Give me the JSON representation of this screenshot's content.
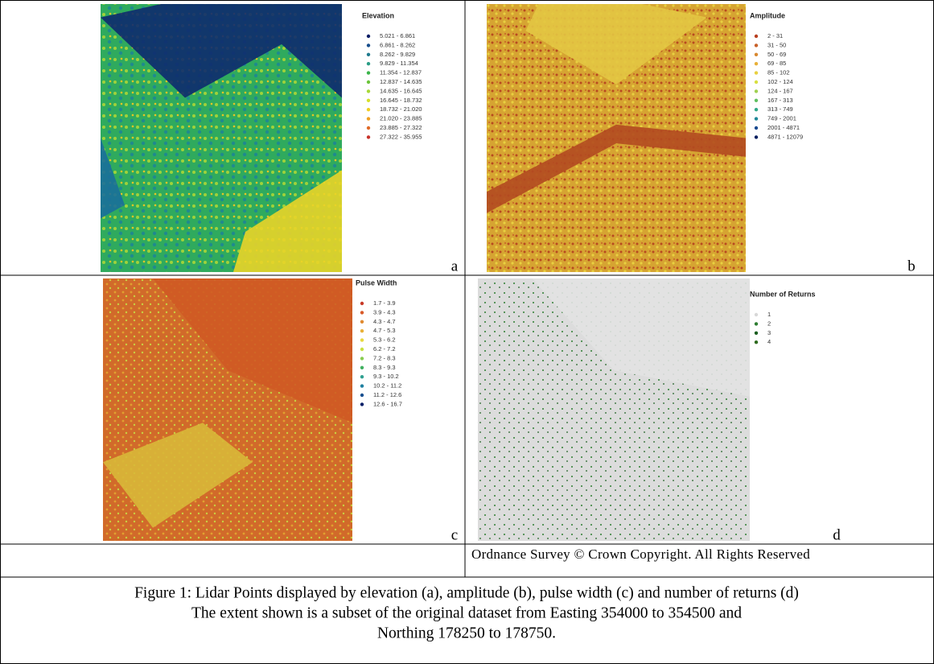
{
  "panels": [
    {
      "legend_title": "Elevation",
      "letter": "a",
      "legend": [
        {
          "label": "5.021 - 6.861",
          "color": "#0b1e66"
        },
        {
          "label": "6.861 - 8.262",
          "color": "#174d8c"
        },
        {
          "label": "8.262 - 9.829",
          "color": "#1f7a8e"
        },
        {
          "label": "9.829 - 11.354",
          "color": "#2a9d86"
        },
        {
          "label": "11.354 - 12.837",
          "color": "#3bb44a"
        },
        {
          "label": "12.837 - 14.635",
          "color": "#6cc53a"
        },
        {
          "label": "14.635 - 16.645",
          "color": "#a8d838"
        },
        {
          "label": "16.645 - 18.732",
          "color": "#d6e02a"
        },
        {
          "label": "18.732 - 21.020",
          "color": "#f0cf22"
        },
        {
          "label": "21.020 - 23.885",
          "color": "#f0a022"
        },
        {
          "label": "23.885 - 27.322",
          "color": "#e06a28"
        },
        {
          "label": "27.322 - 35.955",
          "color": "#c8322a"
        }
      ]
    },
    {
      "legend_title": "Amplitude",
      "letter": "b",
      "legend": [
        {
          "label": "2 - 31",
          "color": "#b84020"
        },
        {
          "label": "31 - 50",
          "color": "#c86028"
        },
        {
          "label": "50 - 69",
          "color": "#d88830"
        },
        {
          "label": "69 - 85",
          "color": "#e8b038"
        },
        {
          "label": "85 - 102",
          "color": "#e8d040"
        },
        {
          "label": "102 - 124",
          "color": "#d8e040"
        },
        {
          "label": "124 - 167",
          "color": "#a0d050"
        },
        {
          "label": "167 - 313",
          "color": "#60c060"
        },
        {
          "label": "313 - 749",
          "color": "#30a888"
        },
        {
          "label": "749 - 2001",
          "color": "#208898"
        },
        {
          "label": "2001 - 4871",
          "color": "#1a4a90"
        },
        {
          "label": "4871 - 12079",
          "color": "#0a2060"
        }
      ]
    },
    {
      "legend_title": "Pulse Width",
      "letter": "c",
      "legend": [
        {
          "label": "1.7 - 3.9",
          "color": "#c83a28"
        },
        {
          "label": "3.9 - 4.3",
          "color": "#d85a28"
        },
        {
          "label": "4.3 - 4.7",
          "color": "#e08a30"
        },
        {
          "label": "4.7 - 5.3",
          "color": "#e8b038"
        },
        {
          "label": "5.3 - 6.2",
          "color": "#e8d840"
        },
        {
          "label": "6.2 - 7.2",
          "color": "#c8e040"
        },
        {
          "label": "7.2 - 8.3",
          "color": "#88cc50"
        },
        {
          "label": "8.3 - 9.3",
          "color": "#40b060"
        },
        {
          "label": "9.3 - 10.2",
          "color": "#30a090"
        },
        {
          "label": "10.2 - 11.2",
          "color": "#2080a0"
        },
        {
          "label": "11.2 - 12.6",
          "color": "#1a5090"
        },
        {
          "label": "12.6 - 16.7",
          "color": "#0a2068"
        }
      ]
    },
    {
      "legend_title": "Number of Returns",
      "letter": "d",
      "legend": [
        {
          "label": "1",
          "color": "#d8d8d8"
        },
        {
          "label": "2",
          "color": "#2e7d32"
        },
        {
          "label": "3",
          "color": "#1b5e20"
        },
        {
          "label": "4",
          "color": "#2e6b1e"
        }
      ]
    }
  ],
  "copyright": "Ordnance Survey © Crown Copyright. All Rights Reserved",
  "caption": [
    "Figure 1: Lidar Points displayed by elevation (a), amplitude (b), pulse width (c) and number of returns (d)",
    "The extent shown is a subset of the original dataset from Easting 354000 to 354500 and",
    "Northing 178250 to 178750."
  ]
}
